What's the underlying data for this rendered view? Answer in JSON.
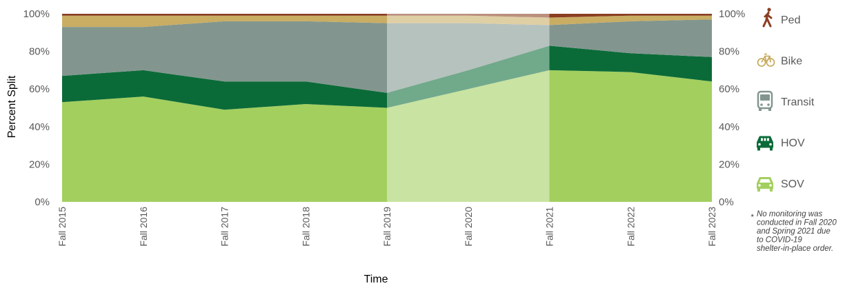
{
  "chart_data": {
    "type": "area",
    "stacked": true,
    "xlabel": "Time",
    "ylabel": "Percent Split",
    "ylim": [
      0,
      100
    ],
    "y_ticks": [
      "0%",
      "20%",
      "40%",
      "60%",
      "80%",
      "100%"
    ],
    "categories": [
      "Fall 2015",
      "Fall 2016",
      "Fall 2017",
      "Fall 2018",
      "Fall 2019",
      "Fall 2020",
      "Fall 2021",
      "Fall 2022",
      "Fall 2023"
    ],
    "series": [
      {
        "name": "SOV",
        "color": "#a3cf5f",
        "icon": "car-icon",
        "values": [
          53,
          56,
          49,
          52,
          50,
          60,
          70,
          69,
          64
        ]
      },
      {
        "name": "HOV",
        "color": "#0b6b38",
        "icon": "carpool-icon",
        "values": [
          14,
          14,
          15,
          12,
          8,
          10,
          13,
          10,
          13
        ]
      },
      {
        "name": "Transit",
        "color": "#82968f",
        "icon": "bus-icon",
        "values": [
          26,
          23,
          32,
          32,
          37,
          25,
          11,
          17,
          20
        ]
      },
      {
        "name": "Bike",
        "color": "#c9ad63",
        "icon": "bike-icon",
        "values": [
          6,
          6,
          3,
          3,
          4,
          4,
          4,
          3,
          2
        ]
      },
      {
        "name": "Ped",
        "color": "#8a3e22",
        "icon": "walker-icon",
        "values": [
          1,
          1,
          1,
          1,
          1,
          1,
          2,
          1,
          1
        ]
      }
    ],
    "shaded_range": [
      "Fall 2019",
      "Fall 2021"
    ],
    "legend_position": "right",
    "grid": false
  },
  "note": {
    "marker": "*",
    "lines": [
      "No monitoring was",
      "conducted in Fall 2020",
      "and Spring 2021 due",
      "to COVID-19",
      "shelter-in-place order."
    ]
  }
}
